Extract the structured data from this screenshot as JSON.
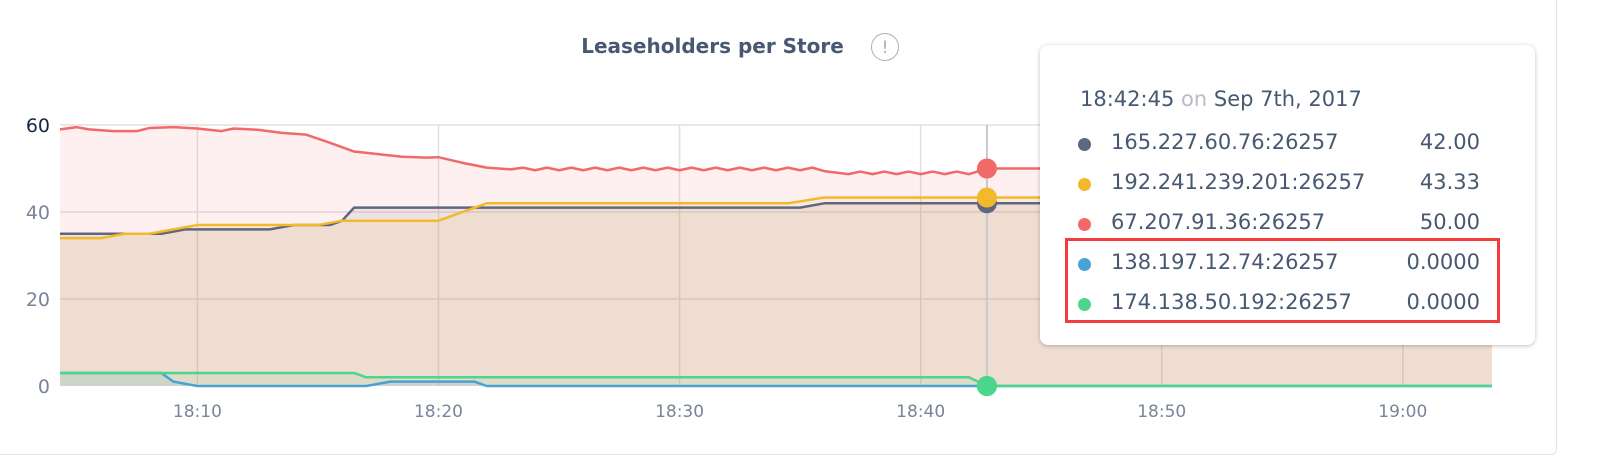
{
  "title": "Leaseholders per Store",
  "info_icon": "exclamation-circle-icon",
  "info_icon_glyph": "!",
  "chart_data": {
    "type": "area",
    "title": "Leaseholders per Store",
    "xlabel": "",
    "ylabel": "",
    "xlim": [
      "18:04:18",
      "19:03:42"
    ],
    "ylim": [
      0,
      60
    ],
    "x_ticks": [
      "18:10",
      "18:20",
      "18:30",
      "18:40",
      "18:50",
      "19:00"
    ],
    "y_ticks": [
      "0",
      "20",
      "40",
      "60"
    ],
    "grid": true,
    "hover_time": "18:42:45",
    "series": [
      {
        "name": "165.227.60.76:26257",
        "color": "#5e6781",
        "points": [
          [
            "18:04:18",
            35
          ],
          [
            "18:08:30",
            35
          ],
          [
            "18:09:30",
            36
          ],
          [
            "18:13:00",
            36
          ],
          [
            "18:14:00",
            37
          ],
          [
            "18:15:30",
            37
          ],
          [
            "18:16:00",
            38
          ],
          [
            "18:16:30",
            41
          ],
          [
            "18:35:00",
            41
          ],
          [
            "18:36:00",
            42
          ],
          [
            "18:45:00",
            42
          ],
          [
            "19:03:42",
            42
          ]
        ]
      },
      {
        "name": "192.241.239.201:26257",
        "color": "#f2b92b",
        "points": [
          [
            "18:04:18",
            34
          ],
          [
            "18:06:00",
            34
          ],
          [
            "18:07:00",
            35
          ],
          [
            "18:08:00",
            35
          ],
          [
            "18:09:00",
            36
          ],
          [
            "18:10:00",
            37
          ],
          [
            "18:15:00",
            37
          ],
          [
            "18:16:00",
            38
          ],
          [
            "18:20:00",
            38
          ],
          [
            "18:21:00",
            40
          ],
          [
            "18:21:30",
            41
          ],
          [
            "18:22:00",
            42
          ],
          [
            "18:34:30",
            42
          ],
          [
            "18:36:00",
            43.33
          ],
          [
            "18:45:00",
            43.33
          ],
          [
            "19:03:42",
            43.33
          ]
        ]
      },
      {
        "name": "67.207.91.36:26257",
        "color": "#f16969",
        "points": [
          [
            "18:04:18",
            59
          ],
          [
            "18:05:00",
            59.5
          ],
          [
            "18:05:30",
            59
          ],
          [
            "18:06:30",
            58.6
          ],
          [
            "18:07:30",
            58.6
          ],
          [
            "18:08:00",
            59.3
          ],
          [
            "18:09:00",
            59.5
          ],
          [
            "18:10:00",
            59.2
          ],
          [
            "18:11:00",
            58.6
          ],
          [
            "18:11:30",
            59.2
          ],
          [
            "18:12:30",
            58.9
          ],
          [
            "18:13:30",
            58.2
          ],
          [
            "18:14:30",
            57.8
          ],
          [
            "18:15:30",
            55.9
          ],
          [
            "18:16:30",
            53.9
          ],
          [
            "18:17:30",
            53.3
          ],
          [
            "18:18:30",
            52.7
          ],
          [
            "18:19:30",
            52.5
          ],
          [
            "18:20:00",
            52.6
          ],
          [
            "18:21:00",
            51.3
          ],
          [
            "18:22:00",
            50.2
          ],
          [
            "18:23:00",
            49.8
          ],
          [
            "18:23:30",
            50.2
          ],
          [
            "18:24:00",
            49.6
          ],
          [
            "18:24:30",
            50.2
          ],
          [
            "18:25:00",
            49.6
          ],
          [
            "18:25:30",
            50.2
          ],
          [
            "18:26:00",
            49.6
          ],
          [
            "18:26:30",
            50.2
          ],
          [
            "18:27:00",
            49.6
          ],
          [
            "18:27:30",
            50.2
          ],
          [
            "18:28:00",
            49.6
          ],
          [
            "18:28:30",
            50.2
          ],
          [
            "18:29:00",
            49.6
          ],
          [
            "18:29:30",
            50.2
          ],
          [
            "18:30:00",
            49.6
          ],
          [
            "18:30:30",
            50.2
          ],
          [
            "18:31:00",
            49.6
          ],
          [
            "18:31:30",
            50.2
          ],
          [
            "18:32:00",
            49.6
          ],
          [
            "18:32:30",
            50.2
          ],
          [
            "18:33:00",
            49.6
          ],
          [
            "18:33:30",
            50.2
          ],
          [
            "18:34:00",
            49.6
          ],
          [
            "18:34:30",
            50.2
          ],
          [
            "18:35:00",
            49.6
          ],
          [
            "18:35:30",
            50.2
          ],
          [
            "18:36:00",
            49.4
          ],
          [
            "18:37:00",
            48.7
          ],
          [
            "18:37:30",
            49.3
          ],
          [
            "18:38:00",
            48.7
          ],
          [
            "18:38:30",
            49.3
          ],
          [
            "18:39:00",
            48.7
          ],
          [
            "18:39:30",
            49.3
          ],
          [
            "18:40:00",
            48.7
          ],
          [
            "18:40:30",
            49.3
          ],
          [
            "18:41:00",
            48.7
          ],
          [
            "18:41:30",
            49.3
          ],
          [
            "18:42:00",
            48.7
          ],
          [
            "18:42:45",
            50
          ],
          [
            "18:45:00",
            50
          ],
          [
            "19:03:42",
            50
          ]
        ]
      },
      {
        "name": "138.197.12.74:26257",
        "color": "#4aa1d6",
        "points": [
          [
            "18:04:18",
            3
          ],
          [
            "18:08:30",
            3
          ],
          [
            "18:09:00",
            1
          ],
          [
            "18:10:00",
            0
          ],
          [
            "18:17:00",
            0
          ],
          [
            "18:18:00",
            1
          ],
          [
            "18:21:30",
            1
          ],
          [
            "18:22:00",
            0
          ],
          [
            "19:03:42",
            0
          ]
        ]
      },
      {
        "name": "174.138.50.192:26257",
        "color": "#4bd68c",
        "points": [
          [
            "18:04:18",
            3
          ],
          [
            "18:16:30",
            3
          ],
          [
            "18:17:00",
            2
          ],
          [
            "18:42:00",
            2
          ],
          [
            "18:42:45",
            0
          ],
          [
            "19:03:42",
            0
          ]
        ]
      }
    ]
  },
  "tooltip": {
    "time": "18:42:45",
    "on": "on",
    "date": "Sep 7th, 2017",
    "rows": [
      {
        "label": "165.227.60.76:26257",
        "value": "42.00",
        "color": "#5e6781"
      },
      {
        "label": "192.241.239.201:26257",
        "value": "43.33",
        "color": "#f2b92b"
      },
      {
        "label": "67.207.91.36:26257",
        "value": "50.00",
        "color": "#f16969"
      },
      {
        "label": "138.197.12.74:26257",
        "value": "0.0000",
        "color": "#4aa1d6"
      },
      {
        "label": "174.138.50.192:26257",
        "value": "0.0000",
        "color": "#4bd68c"
      }
    ],
    "highlight_color": "#f33c3c"
  }
}
